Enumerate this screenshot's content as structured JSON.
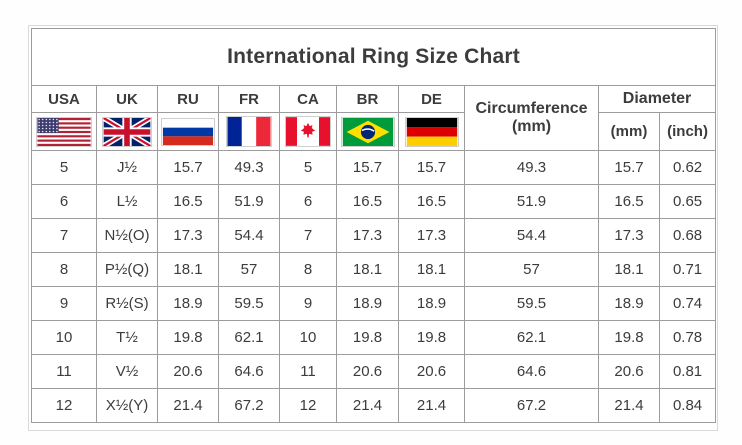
{
  "title": "International Ring Size Chart",
  "header": {
    "circumference_line1": "Circumference",
    "circumference_line2": "(mm)",
    "diameter": "Diameter",
    "diameter_mm": "(mm)",
    "diameter_inch": "(inch)"
  },
  "colors": {
    "grid_line": "#9c9c9c",
    "outer_frame": "#d9d9d9",
    "text": "#3c3c3c",
    "title_text": "#1f1f1f"
  },
  "chart_data": {
    "type": "table",
    "title": "International Ring Size Chart",
    "country_columns": [
      {
        "label": "USA",
        "icon": "usa-flag-icon"
      },
      {
        "label": "UK",
        "icon": "uk-flag-icon"
      },
      {
        "label": "RU",
        "icon": "russia-flag-icon"
      },
      {
        "label": "FR",
        "icon": "france-flag-icon"
      },
      {
        "label": "CA",
        "icon": "canada-flag-icon"
      },
      {
        "label": "BR",
        "icon": "brazil-flag-icon"
      },
      {
        "label": "DE",
        "icon": "germany-flag-icon"
      }
    ],
    "measure_columns": [
      "Circumference (mm)",
      "Diameter (mm)",
      "Diameter (inch)"
    ],
    "rows": [
      [
        "5",
        "J½",
        "15.7",
        "49.3",
        "5",
        "15.7",
        "15.7",
        "49.3",
        "15.7",
        "0.62"
      ],
      [
        "6",
        "L½",
        "16.5",
        "51.9",
        "6",
        "16.5",
        "16.5",
        "51.9",
        "16.5",
        "0.65"
      ],
      [
        "7",
        "N½(O)",
        "17.3",
        "54.4",
        "7",
        "17.3",
        "17.3",
        "54.4",
        "17.3",
        "0.68"
      ],
      [
        "8",
        "P½(Q)",
        "18.1",
        "57",
        "8",
        "18.1",
        "18.1",
        "57",
        "18.1",
        "0.71"
      ],
      [
        "9",
        "R½(S)",
        "18.9",
        "59.5",
        "9",
        "18.9",
        "18.9",
        "59.5",
        "18.9",
        "0.74"
      ],
      [
        "10",
        "T½",
        "19.8",
        "62.1",
        "10",
        "19.8",
        "19.8",
        "62.1",
        "19.8",
        "0.78"
      ],
      [
        "11",
        "V½",
        "20.6",
        "64.6",
        "11",
        "20.6",
        "20.6",
        "64.6",
        "20.6",
        "0.81"
      ],
      [
        "12",
        "X½(Y)",
        "21.4",
        "67.2",
        "12",
        "21.4",
        "21.4",
        "67.2",
        "21.4",
        "0.84"
      ]
    ]
  }
}
